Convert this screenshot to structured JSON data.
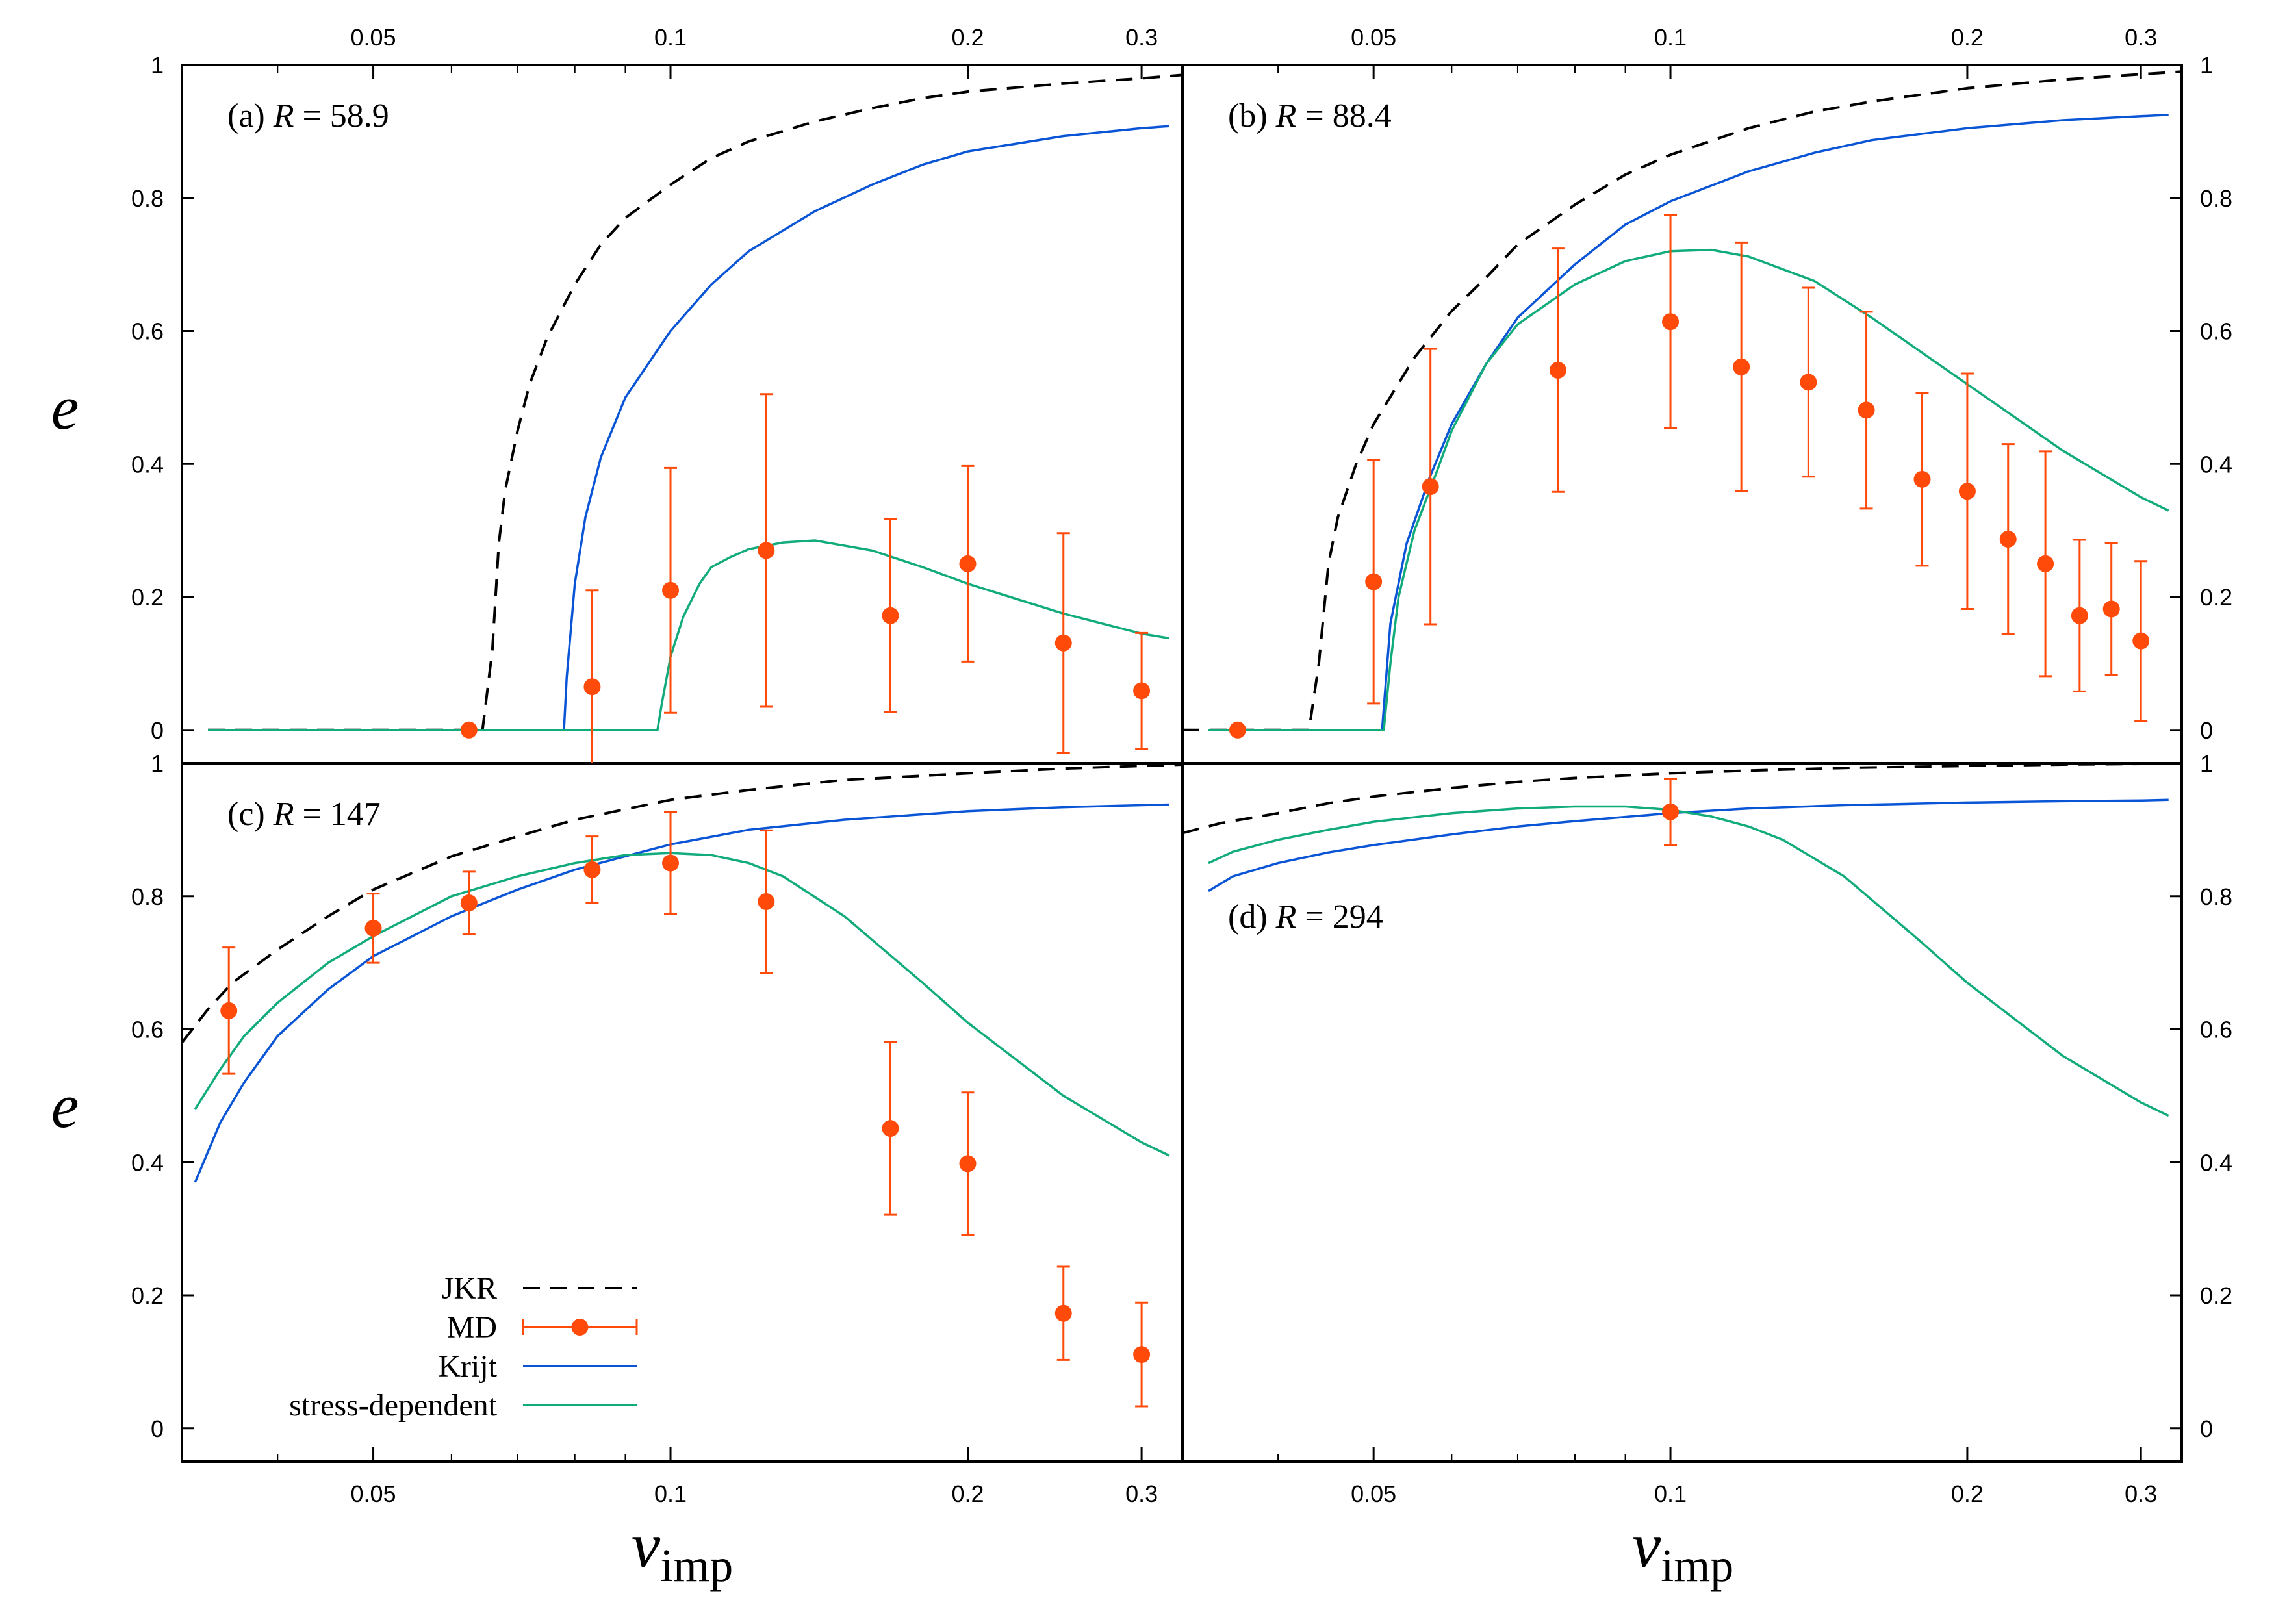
{
  "figure": {
    "x_axis_label_main": "v",
    "x_axis_label_sub": "imp",
    "y_axis_label": "e",
    "x_ticks": [
      0.05,
      0.1,
      0.2,
      0.3
    ],
    "x_tick_labels": [
      "0.05",
      "0.1",
      "0.2",
      "0.3"
    ],
    "y_ticks": [
      0,
      0.2,
      0.4,
      0.6,
      0.8,
      1
    ],
    "y_tick_labels": [
      "0",
      "0.2",
      "0.4",
      "0.6",
      "0.8",
      "1"
    ],
    "colors": {
      "jkr": "#000000",
      "md": "#ff4a0a",
      "krijt": "#0a55d6",
      "stress": "#12ab7c"
    }
  },
  "legend": {
    "items": [
      {
        "label": "JKR",
        "style": "dashed"
      },
      {
        "label": "MD",
        "style": "errorbar"
      },
      {
        "label": "Krijt",
        "style": "solid-blue"
      },
      {
        "label": "stress-dependent",
        "style": "solid-green"
      }
    ]
  },
  "chart_data": [
    {
      "type": "line",
      "panel": "a",
      "label_prefix": "(a) ",
      "label_var": "R",
      "label_value": " = 58.9",
      "xscale": "log",
      "xlim": [
        0.032,
        0.33
      ],
      "ylim": [
        -0.05,
        1
      ],
      "series": [
        {
          "name": "JKR",
          "style": "dashed",
          "x": [
            0.034,
            0.0645,
            0.066,
            0.067,
            0.068,
            0.07,
            0.072,
            0.075,
            0.08,
            0.085,
            0.09,
            0.1,
            0.11,
            0.12,
            0.14,
            0.16,
            0.18,
            0.2,
            0.25,
            0.3,
            0.33
          ],
          "y": [
            0,
            0,
            0.12,
            0.28,
            0.36,
            0.45,
            0.52,
            0.59,
            0.67,
            0.73,
            0.77,
            0.82,
            0.86,
            0.885,
            0.915,
            0.935,
            0.95,
            0.96,
            0.972,
            0.98,
            0.985
          ]
        },
        {
          "name": "Krijt",
          "style": "solid",
          "x": [
            0.034,
            0.078,
            0.0785,
            0.08,
            0.082,
            0.085,
            0.09,
            0.1,
            0.11,
            0.12,
            0.14,
            0.16,
            0.18,
            0.2,
            0.25,
            0.3,
            0.32
          ],
          "y": [
            0,
            0,
            0.08,
            0.22,
            0.32,
            0.41,
            0.5,
            0.6,
            0.67,
            0.72,
            0.78,
            0.82,
            0.85,
            0.87,
            0.893,
            0.905,
            0.908
          ]
        },
        {
          "name": "stress-dependent",
          "style": "solid",
          "x": [
            0.034,
            0.097,
            0.098,
            0.1,
            0.103,
            0.107,
            0.11,
            0.115,
            0.12,
            0.13,
            0.14,
            0.16,
            0.18,
            0.2,
            0.25,
            0.3,
            0.32
          ],
          "y": [
            0,
            0,
            0.04,
            0.11,
            0.17,
            0.22,
            0.245,
            0.26,
            0.272,
            0.282,
            0.285,
            0.27,
            0.245,
            0.22,
            0.175,
            0.145,
            0.138
          ]
        },
        {
          "name": "MD",
          "style": "errorbar",
          "x": [
            0.0625,
            0.0833,
            0.1,
            0.125,
            0.167,
            0.2,
            0.25,
            0.3
          ],
          "y": [
            0,
            0.065,
            0.21,
            0.27,
            0.172,
            0.25,
            0.131,
            0.059
          ],
          "err": [
            0,
            0.145,
            0.184,
            0.235,
            0.145,
            0.147,
            0.165,
            0.087
          ]
        }
      ]
    },
    {
      "type": "line",
      "panel": "b",
      "label_prefix": "(b) ",
      "label_var": "R",
      "label_value": " = 88.4",
      "xscale": "log",
      "xlim": [
        0.032,
        0.33
      ],
      "ylim": [
        -0.05,
        1
      ],
      "series": [
        {
          "name": "JKR",
          "style": "dashed",
          "x": [
            0.032,
            0.043,
            0.044,
            0.045,
            0.046,
            0.048,
            0.05,
            0.055,
            0.06,
            0.065,
            0.07,
            0.08,
            0.09,
            0.1,
            0.12,
            0.14,
            0.16,
            0.2,
            0.25,
            0.3,
            0.33
          ],
          "y": [
            0,
            0,
            0.1,
            0.25,
            0.32,
            0.4,
            0.46,
            0.56,
            0.63,
            0.68,
            0.73,
            0.79,
            0.835,
            0.865,
            0.905,
            0.93,
            0.945,
            0.965,
            0.978,
            0.986,
            0.99
          ]
        },
        {
          "name": "Krijt",
          "style": "solid",
          "x": [
            0.034,
            0.051,
            0.0515,
            0.052,
            0.054,
            0.057,
            0.06,
            0.065,
            0.07,
            0.08,
            0.09,
            0.1,
            0.12,
            0.14,
            0.16,
            0.2,
            0.25,
            0.3,
            0.32
          ],
          "y": [
            0,
            0,
            0.08,
            0.16,
            0.28,
            0.38,
            0.46,
            0.55,
            0.62,
            0.7,
            0.76,
            0.795,
            0.84,
            0.868,
            0.887,
            0.905,
            0.917,
            0.923,
            0.925
          ]
        },
        {
          "name": "stress-dependent",
          "style": "solid",
          "x": [
            0.034,
            0.0512,
            0.052,
            0.053,
            0.055,
            0.058,
            0.06,
            0.065,
            0.07,
            0.08,
            0.09,
            0.1,
            0.11,
            0.12,
            0.14,
            0.16,
            0.2,
            0.25,
            0.3,
            0.32
          ],
          "y": [
            0,
            0,
            0.1,
            0.2,
            0.3,
            0.39,
            0.45,
            0.55,
            0.61,
            0.67,
            0.705,
            0.72,
            0.722,
            0.712,
            0.675,
            0.62,
            0.52,
            0.42,
            0.35,
            0.33
          ]
        },
        {
          "name": "MD",
          "style": "errorbar",
          "x": [
            0.0364,
            0.05,
            0.0571,
            0.0769,
            0.1,
            0.118,
            0.138,
            0.158,
            0.18,
            0.2,
            0.22,
            0.24,
            0.26,
            0.28,
            0.3
          ],
          "y": [
            0,
            0.223,
            0.366,
            0.541,
            0.614,
            0.546,
            0.523,
            0.481,
            0.377,
            0.359,
            0.287,
            0.25,
            0.172,
            0.182,
            0.134
          ],
          "err": [
            0,
            0.183,
            0.207,
            0.183,
            0.16,
            0.187,
            0.142,
            0.148,
            0.13,
            0.177,
            0.143,
            0.169,
            0.114,
            0.099,
            0.12
          ]
        }
      ]
    },
    {
      "type": "line",
      "panel": "c",
      "label_prefix": "(c) ",
      "label_var": "R",
      "label_value": " = 147",
      "xscale": "log",
      "xlim": [
        0.032,
        0.33
      ],
      "ylim": [
        -0.05,
        1
      ],
      "series": [
        {
          "name": "JKR",
          "style": "dashed",
          "x": [
            0.032,
            0.034,
            0.036,
            0.04,
            0.045,
            0.05,
            0.06,
            0.07,
            0.08,
            0.1,
            0.12,
            0.15,
            0.2,
            0.25,
            0.3,
            0.33
          ],
          "y": [
            0.58,
            0.63,
            0.67,
            0.72,
            0.77,
            0.81,
            0.86,
            0.89,
            0.915,
            0.945,
            0.96,
            0.975,
            0.985,
            0.992,
            0.996,
            0.998
          ]
        },
        {
          "name": "Krijt",
          "style": "solid",
          "x": [
            0.033,
            0.035,
            0.037,
            0.04,
            0.045,
            0.05,
            0.06,
            0.07,
            0.08,
            0.1,
            0.12,
            0.15,
            0.2,
            0.25,
            0.3,
            0.32
          ],
          "y": [
            0.37,
            0.46,
            0.52,
            0.59,
            0.66,
            0.71,
            0.77,
            0.81,
            0.84,
            0.878,
            0.9,
            0.915,
            0.928,
            0.934,
            0.937,
            0.938
          ]
        },
        {
          "name": "stress-dependent",
          "style": "solid",
          "x": [
            0.033,
            0.035,
            0.037,
            0.04,
            0.045,
            0.05,
            0.06,
            0.07,
            0.08,
            0.09,
            0.1,
            0.11,
            0.12,
            0.13,
            0.15,
            0.18,
            0.2,
            0.25,
            0.3,
            0.32
          ],
          "y": [
            0.48,
            0.54,
            0.59,
            0.64,
            0.7,
            0.74,
            0.8,
            0.83,
            0.85,
            0.862,
            0.865,
            0.862,
            0.85,
            0.83,
            0.77,
            0.67,
            0.61,
            0.5,
            0.43,
            0.41
          ]
        },
        {
          "name": "MD",
          "style": "errorbar",
          "x": [
            0.0357,
            0.05,
            0.0625,
            0.0833,
            0.1,
            0.125,
            0.167,
            0.2,
            0.25,
            0.3
          ],
          "y": [
            0.628,
            0.752,
            0.79,
            0.84,
            0.85,
            0.792,
            0.451,
            0.398,
            0.173,
            0.111
          ],
          "err": [
            0.095,
            0.052,
            0.047,
            0.05,
            0.077,
            0.107,
            0.13,
            0.107,
            0.07,
            0.078
          ]
        }
      ]
    },
    {
      "type": "line",
      "panel": "d",
      "label_prefix": "(d) ",
      "label_var": "R",
      "label_value": " = 294",
      "xscale": "log",
      "xlim": [
        0.032,
        0.33
      ],
      "ylim": [
        -0.05,
        1
      ],
      "series": [
        {
          "name": "JKR",
          "style": "dashed",
          "x": [
            0.032,
            0.035,
            0.04,
            0.045,
            0.05,
            0.06,
            0.07,
            0.08,
            0.1,
            0.12,
            0.15,
            0.2,
            0.25,
            0.3,
            0.33
          ],
          "y": [
            0.895,
            0.91,
            0.925,
            0.94,
            0.95,
            0.963,
            0.972,
            0.978,
            0.985,
            0.989,
            0.993,
            0.996,
            0.998,
            0.999,
            1.0
          ]
        },
        {
          "name": "Krijt",
          "style": "solid",
          "x": [
            0.034,
            0.036,
            0.04,
            0.045,
            0.05,
            0.06,
            0.07,
            0.08,
            0.1,
            0.12,
            0.15,
            0.2,
            0.25,
            0.3,
            0.32
          ],
          "y": [
            0.808,
            0.83,
            0.85,
            0.866,
            0.877,
            0.893,
            0.905,
            0.913,
            0.925,
            0.932,
            0.937,
            0.941,
            0.943,
            0.944,
            0.945
          ]
        },
        {
          "name": "stress-dependent",
          "style": "solid",
          "x": [
            0.034,
            0.036,
            0.04,
            0.045,
            0.05,
            0.06,
            0.07,
            0.08,
            0.09,
            0.1,
            0.11,
            0.12,
            0.13,
            0.15,
            0.18,
            0.2,
            0.25,
            0.3,
            0.32
          ],
          "y": [
            0.85,
            0.867,
            0.885,
            0.9,
            0.912,
            0.925,
            0.932,
            0.935,
            0.935,
            0.93,
            0.92,
            0.905,
            0.885,
            0.83,
            0.73,
            0.67,
            0.56,
            0.49,
            0.47
          ]
        },
        {
          "name": "MD",
          "style": "errorbar",
          "x": [
            0.1
          ],
          "y": [
            0.927
          ],
          "err": [
            0.05
          ]
        }
      ]
    }
  ]
}
